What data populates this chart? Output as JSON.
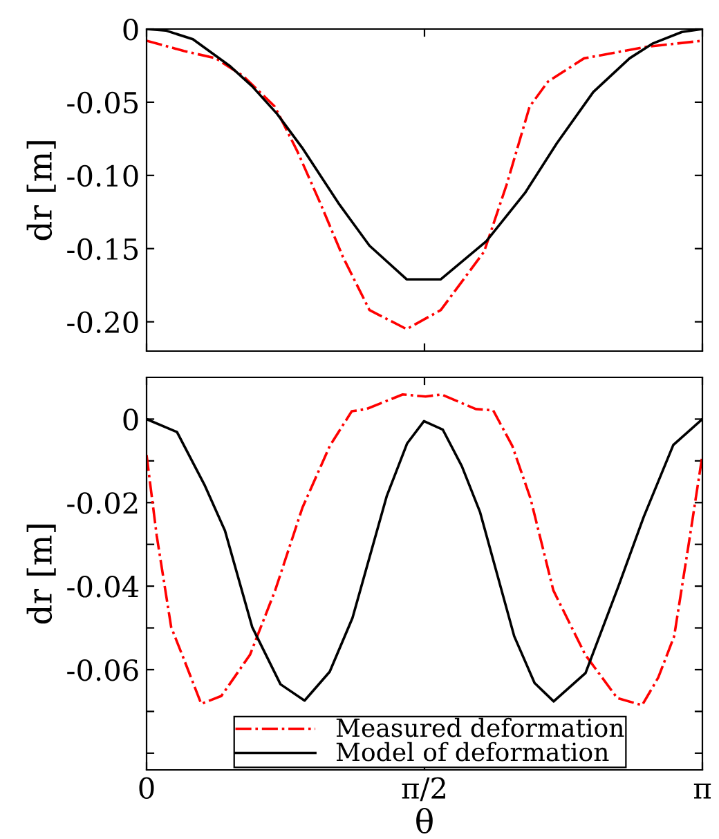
{
  "chart_data": [
    {
      "type": "line",
      "ylabel": "dr [m]",
      "xlim": [
        0,
        3.1416
      ],
      "xticks": [
        {
          "value": 0,
          "label": null
        },
        {
          "value": 1.5708,
          "label": null
        },
        {
          "value": 3.1416,
          "label": null
        }
      ],
      "ylim": [
        -0.22,
        0
      ],
      "yticks": [
        {
          "value": 0,
          "label": "0"
        },
        {
          "value": -0.05,
          "label": "-0.05"
        },
        {
          "value": -0.1,
          "label": "-0.10"
        },
        {
          "value": -0.15,
          "label": "-0.15"
        },
        {
          "value": -0.2,
          "label": "-0.20"
        }
      ],
      "tick_labels": "y",
      "grid": false,
      "legend": false,
      "series": [
        {
          "color": "#ff0000",
          "line_style": "dashdot",
          "x": [
            0,
            0.211,
            0.391,
            0.545,
            0.725,
            0.854,
            0.982,
            1.111,
            1.26,
            1.47,
            1.663,
            1.908,
            2.036,
            2.165,
            2.268,
            2.473,
            2.833,
            3.1416
          ],
          "values": [
            -0.008,
            -0.015,
            -0.02,
            -0.032,
            -0.053,
            -0.084,
            -0.119,
            -0.156,
            -0.192,
            -0.205,
            -0.192,
            -0.152,
            -0.106,
            -0.053,
            -0.036,
            -0.02,
            -0.012,
            -0.008
          ]
        },
        {
          "color": "#000000",
          "line_style": "solid",
          "x": [
            0,
            0.108,
            0.262,
            0.468,
            0.596,
            0.738,
            0.879,
            1.085,
            1.26,
            1.47,
            1.663,
            1.92,
            2.139,
            2.319,
            2.525,
            2.73,
            2.859,
            3.026,
            3.1416
          ],
          "values": [
            0,
            -0.001,
            -0.007,
            -0.025,
            -0.039,
            -0.058,
            -0.081,
            -0.119,
            -0.148,
            -0.171,
            -0.171,
            -0.145,
            -0.112,
            -0.078,
            -0.043,
            -0.02,
            -0.01,
            -0.002,
            0
          ]
        }
      ]
    },
    {
      "type": "line",
      "ylabel": "dr [m]",
      "xlabel": "θ",
      "xlim": [
        0,
        3.1416
      ],
      "xticks": [
        {
          "value": 0,
          "label": "0"
        },
        {
          "value": 1.5708,
          "label": "π/2"
        },
        {
          "value": 3.1416,
          "label": "π"
        }
      ],
      "ylim": [
        -0.084,
        0.01
      ],
      "yticks": [
        {
          "value": 0,
          "label": "0"
        },
        {
          "value": -0.01,
          "label": null
        },
        {
          "value": -0.02,
          "label": "-0.02"
        },
        {
          "value": -0.03,
          "label": null
        },
        {
          "value": -0.04,
          "label": "-0.04"
        },
        {
          "value": -0.05,
          "label": null
        },
        {
          "value": -0.06,
          "label": "-0.06"
        },
        {
          "value": -0.07,
          "label": null
        },
        {
          "value": -0.08,
          "label": null
        }
      ],
      "grid": false,
      "legend": "bottom",
      "series": [
        {
          "name": "Measured deformation",
          "color": "#ff0000",
          "line_style": "dashdot",
          "x": [
            0,
            0.057,
            0.139,
            0.211,
            0.309,
            0.423,
            0.585,
            0.727,
            0.881,
            1.036,
            1.16,
            1.242,
            1.448,
            1.577,
            1.667,
            1.861,
            1.959,
            2.067,
            2.17,
            2.299,
            2.479,
            2.66,
            2.801,
            2.892,
            2.982,
            3.072,
            3.1416
          ],
          "values": [
            -0.0086,
            -0.0278,
            -0.0498,
            -0.0575,
            -0.0682,
            -0.0663,
            -0.0564,
            -0.041,
            -0.0212,
            -0.0064,
            0.0019,
            0.0024,
            0.0059,
            0.0054,
            0.0059,
            0.0024,
            0.0021,
            -0.0064,
            -0.019,
            -0.041,
            -0.0564,
            -0.0668,
            -0.0685,
            -0.0619,
            -0.052,
            -0.0278,
            -0.0086
          ]
        },
        {
          "name": "Model of deformation",
          "color": "#000000",
          "line_style": "solid",
          "x": [
            0,
            0.172,
            0.327,
            0.443,
            0.597,
            0.757,
            0.893,
            1.035,
            1.164,
            1.357,
            1.473,
            1.568,
            1.674,
            1.782,
            1.885,
            2.078,
            2.193,
            2.301,
            2.481,
            2.668,
            2.81,
            2.977,
            3.1416
          ],
          "values": [
            0,
            -0.0031,
            -0.0157,
            -0.0267,
            -0.0498,
            -0.0635,
            -0.0674,
            -0.0605,
            -0.0476,
            -0.0185,
            -0.0058,
            -0.0005,
            -0.0025,
            -0.0113,
            -0.0223,
            -0.052,
            -0.0632,
            -0.0676,
            -0.0608,
            -0.0399,
            -0.0234,
            -0.0062,
            0
          ]
        }
      ]
    }
  ]
}
